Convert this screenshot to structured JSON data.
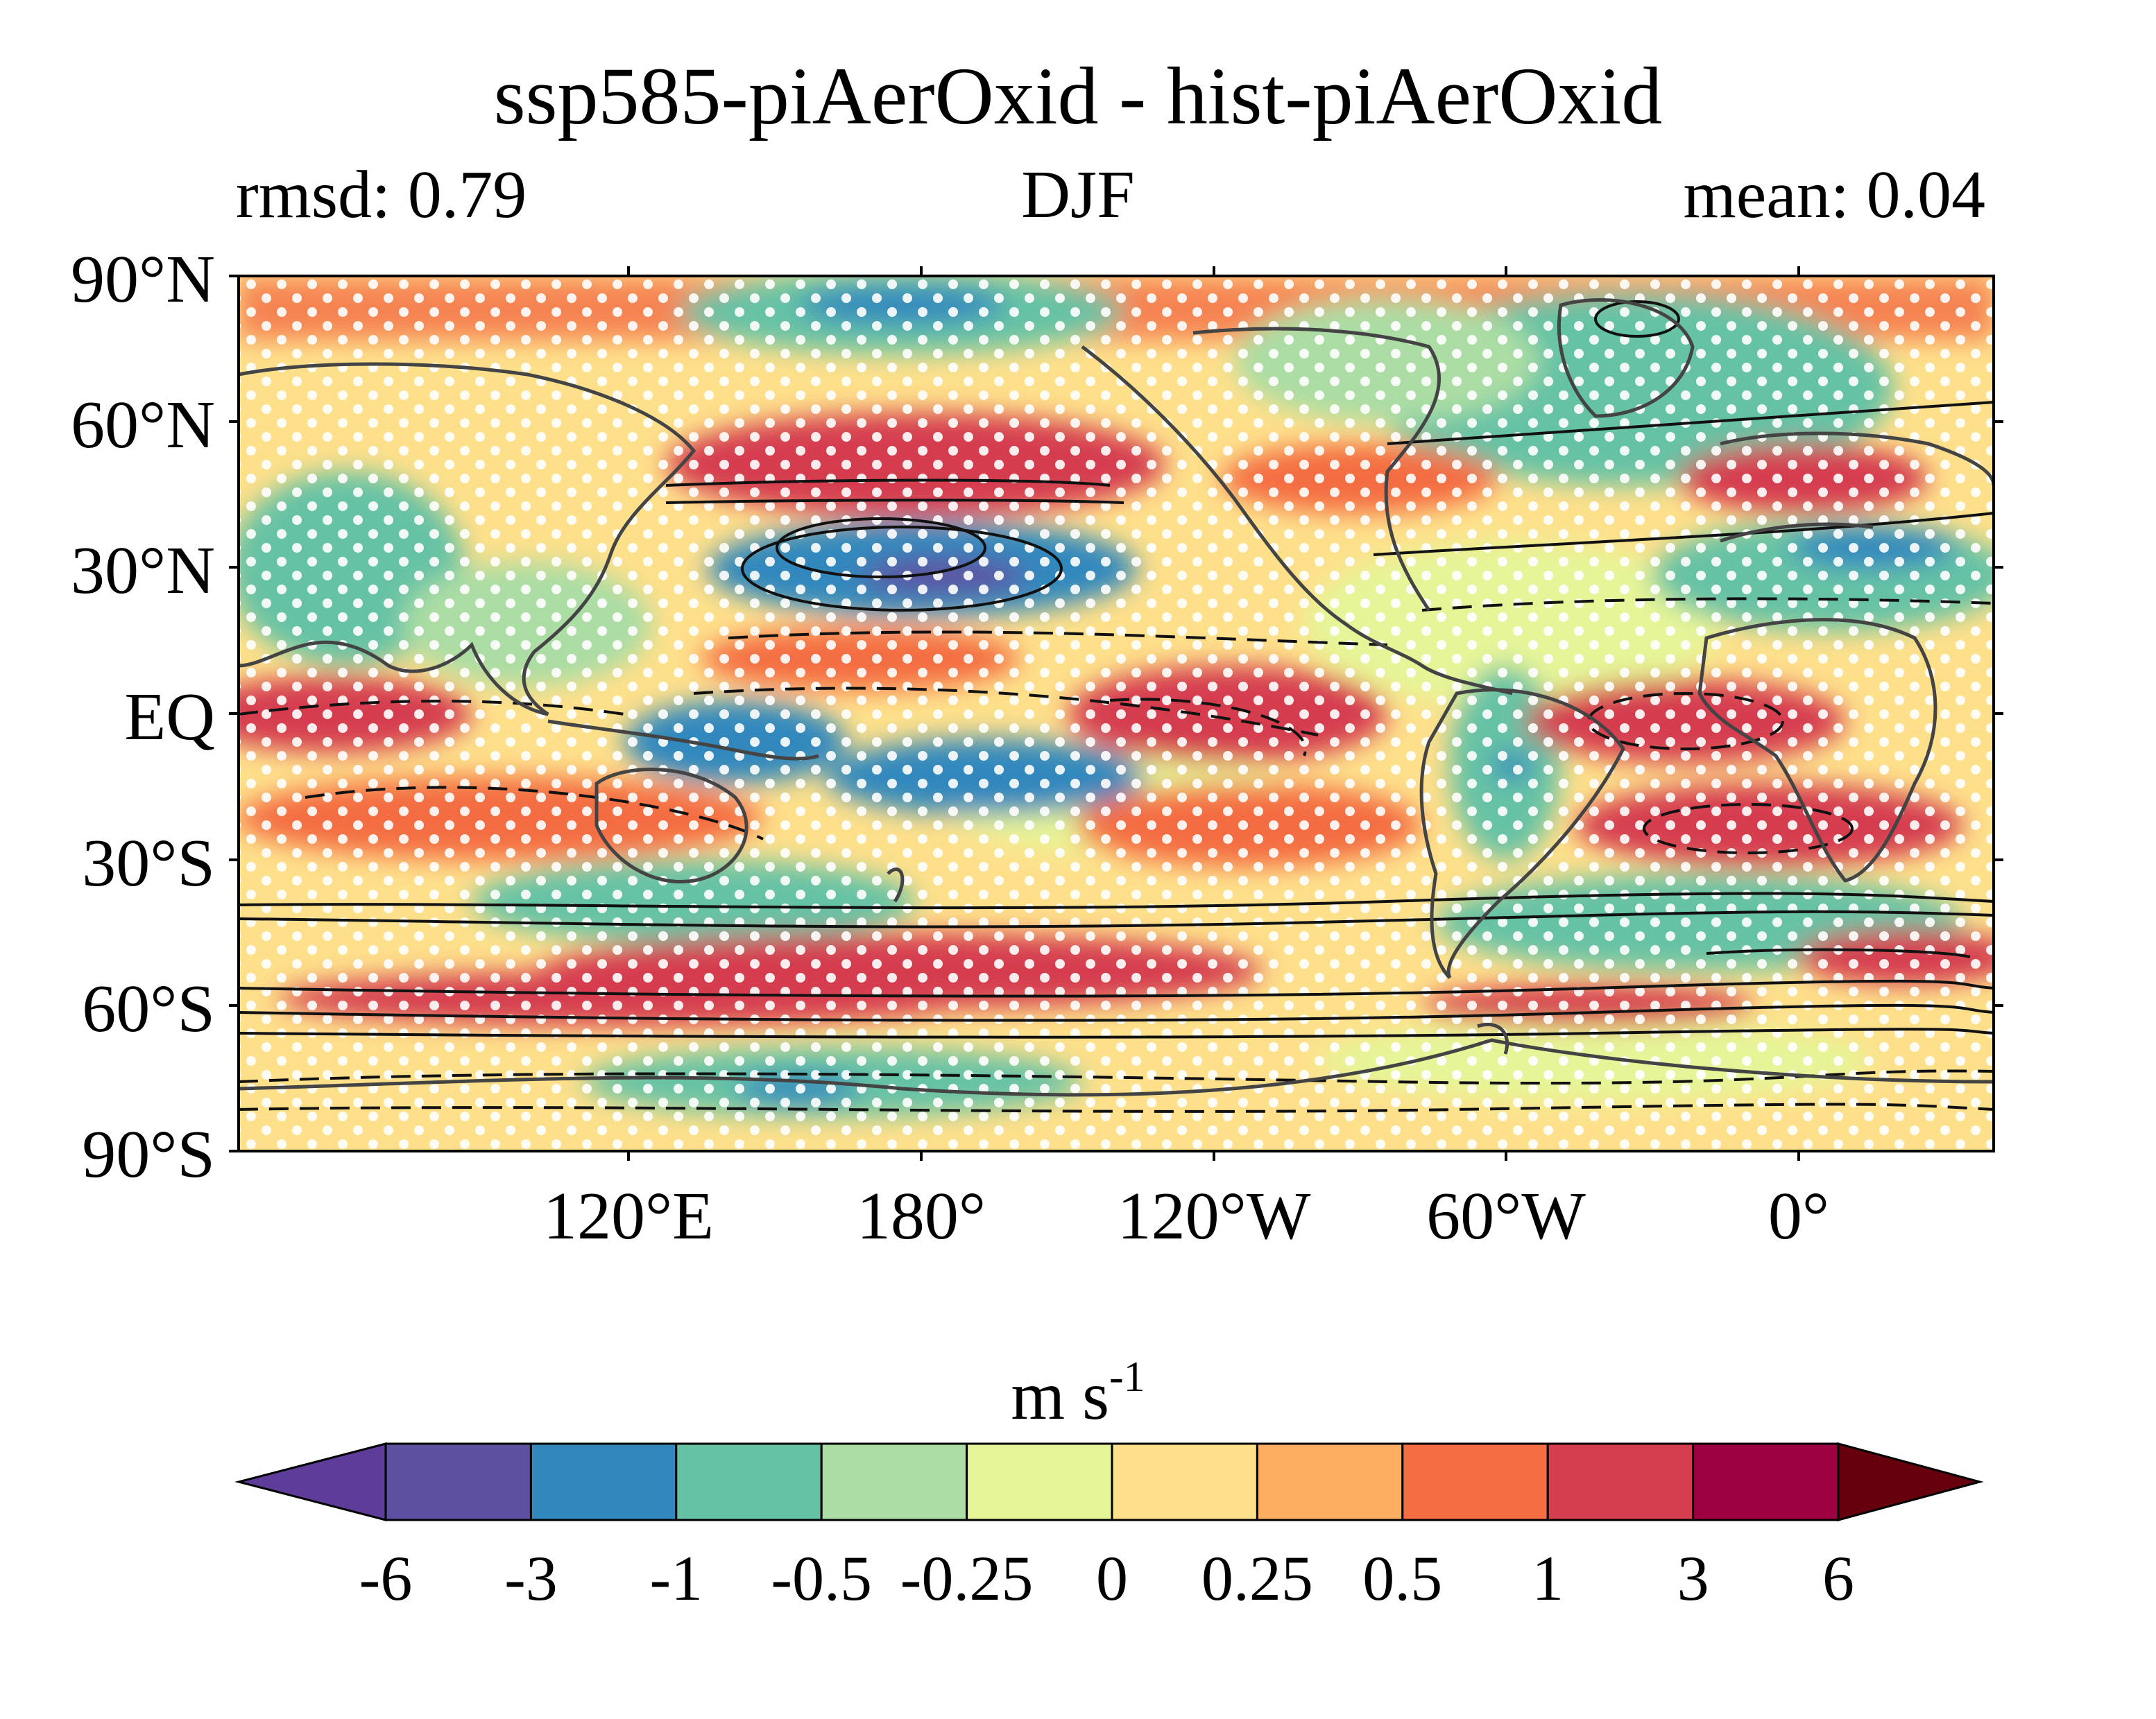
{
  "title": "ssp585-piAerOxid - hist-piAerOxid",
  "subtitle_left": "rmsd: 0.79",
  "subtitle_center": "DJF",
  "subtitle_right": "mean: 0.04",
  "lat_labels": [
    "90°N",
    "60°N",
    "30°N",
    "EQ",
    "30°S",
    "60°S",
    "90°S"
  ],
  "lon_labels": [
    "120°E",
    "180°",
    "120°W",
    "60°W",
    "0°"
  ],
  "colorbar": {
    "units_base": "m s",
    "units_exp": "-1",
    "tick_labels": [
      "-6",
      "-3",
      "-1",
      "-0.5",
      "-0.25",
      "0",
      "0.25",
      "0.5",
      "1",
      "3",
      "6"
    ],
    "colors": [
      "#5e3c99",
      "#5e50a1",
      "#3288bd",
      "#66c2a5",
      "#abdda4",
      "#e6f598",
      "#fee08b",
      "#fdae61",
      "#f46d43",
      "#d53e4f",
      "#9e0142",
      "#67000d"
    ]
  }
}
